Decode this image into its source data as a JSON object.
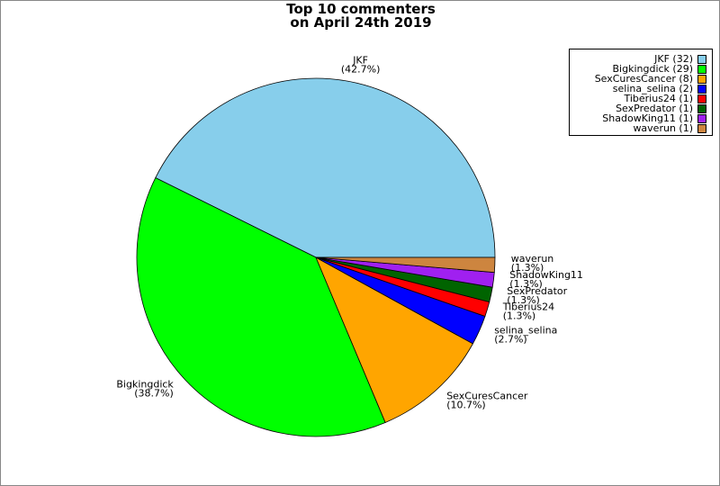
{
  "chart_data": {
    "type": "pie",
    "title_line1": "Top 10 commenters",
    "title_line2": "on April 24th 2019",
    "legend_position": "top-right",
    "slices": [
      {
        "name": "JKF",
        "count": 32,
        "percent": "(42.7%)",
        "legend": "JKF (32)",
        "color": "#87ceeb"
      },
      {
        "name": "Bigkingdick",
        "count": 29,
        "percent": "(38.7%)",
        "legend": "Bigkingdick (29)",
        "color": "#00ff00"
      },
      {
        "name": "SexCuresCancer",
        "count": 8,
        "percent": "(10.7%)",
        "legend": "SexCuresCancer (8)",
        "color": "#ffa500"
      },
      {
        "name": "selina_selina",
        "count": 2,
        "percent": "(2.7%)",
        "legend": "selina_selina (2)",
        "color": "#0000ff"
      },
      {
        "name": "Tiberius24",
        "count": 1,
        "percent": "(1.3%)",
        "legend": "Tiberius24 (1)",
        "color": "#ff0000"
      },
      {
        "name": "SexPredator",
        "count": 1,
        "percent": "(1.3%)",
        "legend": "SexPredator (1)",
        "color": "#006400"
      },
      {
        "name": "ShadowKing11",
        "count": 1,
        "percent": "(1.3%)",
        "legend": "ShadowKing11 (1)",
        "color": "#a020f0"
      },
      {
        "name": "waverun",
        "count": 1,
        "percent": "(1.3%)",
        "legend": "waverun (1)",
        "color": "#cd853f"
      }
    ]
  }
}
